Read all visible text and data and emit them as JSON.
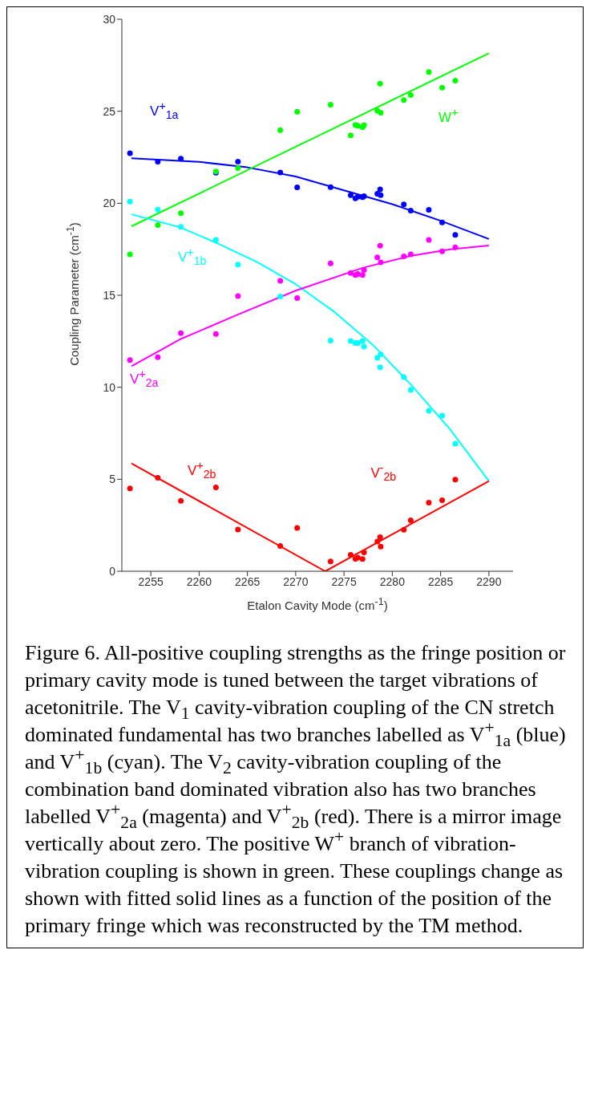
{
  "chart_data": {
    "type": "scatter",
    "xlabel": "Etalon Cavity Mode (cm$^{-1}$)",
    "ylabel": "Coupling Parameter (cm$^{-1}$)",
    "xlim": [
      2252,
      2292.5
    ],
    "xticks": [
      2255,
      2260,
      2265,
      2270,
      2275,
      2280,
      2285,
      2290
    ],
    "ylim": [
      0,
      30
    ],
    "yticks": [
      0,
      5,
      10,
      15,
      20,
      25,
      30
    ],
    "series": [
      {
        "name": "V$^{+}$$_{1a}$",
        "color": "#0000ff",
        "marker": "circle",
        "x": [
          2252.84,
          2255.72,
          2258.11,
          2261.74,
          2264.02,
          2268.4,
          2270.15,
          2273.61,
          2275.69,
          2276.18,
          2276.43,
          2276.92,
          2277.07,
          2278.45,
          2278.74,
          2278.8,
          2281.19,
          2281.91,
          2283.78,
          2285.16,
          2286.52
        ],
        "values": [
          22.72,
          22.26,
          22.42,
          21.66,
          22.26,
          21.67,
          20.87,
          20.88,
          20.44,
          20.26,
          20.35,
          20.33,
          20.38,
          20.52,
          20.76,
          20.44,
          19.94,
          19.6,
          19.64,
          18.96,
          18.28
        ]
      },
      {
        "name": "W$^{+}$",
        "color": "#00ff00",
        "marker": "circle",
        "x": [
          2252.84,
          2255.72,
          2258.11,
          2261.74,
          2264.02,
          2268.4,
          2270.15,
          2273.61,
          2275.69,
          2276.18,
          2276.43,
          2276.92,
          2277.07,
          2278.45,
          2278.74,
          2278.8,
          2281.19,
          2281.91,
          2283.78,
          2285.16,
          2286.52
        ],
        "values": [
          17.22,
          18.81,
          19.46,
          21.73,
          21.91,
          23.97,
          24.97,
          25.36,
          23.69,
          24.26,
          24.21,
          24.13,
          24.24,
          25.03,
          26.5,
          24.92,
          25.61,
          25.88,
          27.13,
          26.28,
          26.66
        ]
      },
      {
        "name": "V$^{+}$$_{1b}$",
        "color": "#00ffff",
        "marker": "circle",
        "x": [
          2252.84,
          2255.72,
          2258.11,
          2261.74,
          2264.02,
          2268.4,
          2273.61,
          2275.69,
          2276.18,
          2276.43,
          2276.92,
          2277.07,
          2278.45,
          2278.74,
          2278.8,
          2281.19,
          2281.91,
          2283.78,
          2285.16,
          2286.52
        ],
        "values": [
          20.09,
          19.66,
          18.72,
          18.01,
          16.67,
          14.94,
          12.54,
          12.51,
          12.41,
          12.41,
          12.51,
          12.21,
          11.6,
          11.09,
          11.79,
          10.55,
          9.85,
          8.72,
          8.46,
          6.93
        ]
      },
      {
        "name": "V$^{+}$$_{2a}$",
        "color": "#ff00ff",
        "marker": "circle",
        "x": [
          2252.84,
          2255.72,
          2258.11,
          2261.74,
          2264.02,
          2268.4,
          2270.15,
          2273.61,
          2275.69,
          2276.18,
          2276.43,
          2276.92,
          2277.07,
          2278.45,
          2278.74,
          2278.8,
          2281.19,
          2281.91,
          2283.78,
          2285.16,
          2286.52
        ],
        "values": [
          11.48,
          11.63,
          12.94,
          12.9,
          14.96,
          15.78,
          14.85,
          16.73,
          16.21,
          16.1,
          16.16,
          16.1,
          16.37,
          17.06,
          17.69,
          16.79,
          17.12,
          17.22,
          18.01,
          17.39,
          17.61
        ]
      },
      {
        "name": "V$^{+}$$_{2b}$",
        "color": "#ff0000",
        "marker": "circle",
        "x": [
          2252.84,
          2255.72,
          2258.11,
          2261.74,
          2264.02,
          2268.4,
          2270.15
        ],
        "values": [
          4.5,
          5.08,
          3.83,
          4.56,
          2.27,
          1.37,
          2.36
        ]
      },
      {
        "name": "V$^{-}$$_{2b}$",
        "color": "#ff0000",
        "marker": "circle",
        "x": [
          2273.61,
          2275.69,
          2276.18,
          2276.43,
          2276.92,
          2277.07,
          2278.45,
          2278.74,
          2278.8,
          2281.19,
          2281.91,
          2283.78,
          2285.16,
          2286.52
        ],
        "values": [
          0.53,
          0.89,
          0.68,
          0.74,
          0.66,
          1.02,
          1.61,
          1.85,
          1.34,
          2.26,
          2.77,
          3.73,
          3.86,
          4.98
        ]
      },
      {
        "color": "#0000ff",
        "type": "line",
        "marker": "none",
        "line_style": "solid",
        "x": [
          2253,
          2260,
          2265,
          2270,
          2275,
          2280,
          2285,
          2290
        ],
        "values": [
          22.45,
          22.25,
          21.95,
          21.45,
          20.7,
          19.95,
          19.05,
          18.06
        ]
      },
      {
        "color": "#00ff00",
        "type": "line",
        "marker": "none",
        "line_style": "solid",
        "x": [
          2253,
          2290
        ],
        "values": [
          18.75,
          28.15
        ]
      },
      {
        "color": "#00ffff",
        "type": "line",
        "marker": "none",
        "line_style": "solid",
        "x": [
          2253,
          2258,
          2262,
          2266,
          2270,
          2274,
          2278,
          2282,
          2286,
          2290
        ],
        "values": [
          19.4,
          18.7,
          17.8,
          16.8,
          15.6,
          14.1,
          12.3,
          10.1,
          7.7,
          4.9
        ]
      },
      {
        "color": "#ff00ff",
        "type": "line",
        "marker": "none",
        "line_style": "solid",
        "x": [
          2253,
          2258,
          2264,
          2270,
          2277,
          2282,
          2286,
          2290
        ],
        "values": [
          11.15,
          12.6,
          13.95,
          15.25,
          16.5,
          17.15,
          17.5,
          17.7
        ]
      },
      {
        "color": "#ff0000",
        "type": "line",
        "marker": "none",
        "line_style": "solid",
        "x": [
          2253,
          2273.06,
          2290
        ],
        "values": [
          5.86,
          0,
          4.9
        ]
      }
    ],
    "annotations": [
      "Figure 6.  All-positive coupling strengths as the fringe position or primary cavity mode is tuned between the target vibrations of acetonitrile.  The V$_{1}$ cavity-vibration coupling of the CN stretch dominated fundamental has two branches labelled as V$^{+}$$_{1a}$ (blue) and V$^{+}$$_{1b}$ (cyan).  The V$_{2}$ cavity-vibration coupling of the combination band dominated vibration also has two branches labelled  V$^{+}$$_{2a}$ (magenta) and  V$^{+}$$_{2b}$ (red).   There is a mirror image vertically about zero. The positive W$^{+}$ branch of vibration-vibration coupling is shown in green. These couplings change as shown with fitted solid lines as a function of the position of the primary fringe which was reconstructed by the TM method."
    ]
  }
}
